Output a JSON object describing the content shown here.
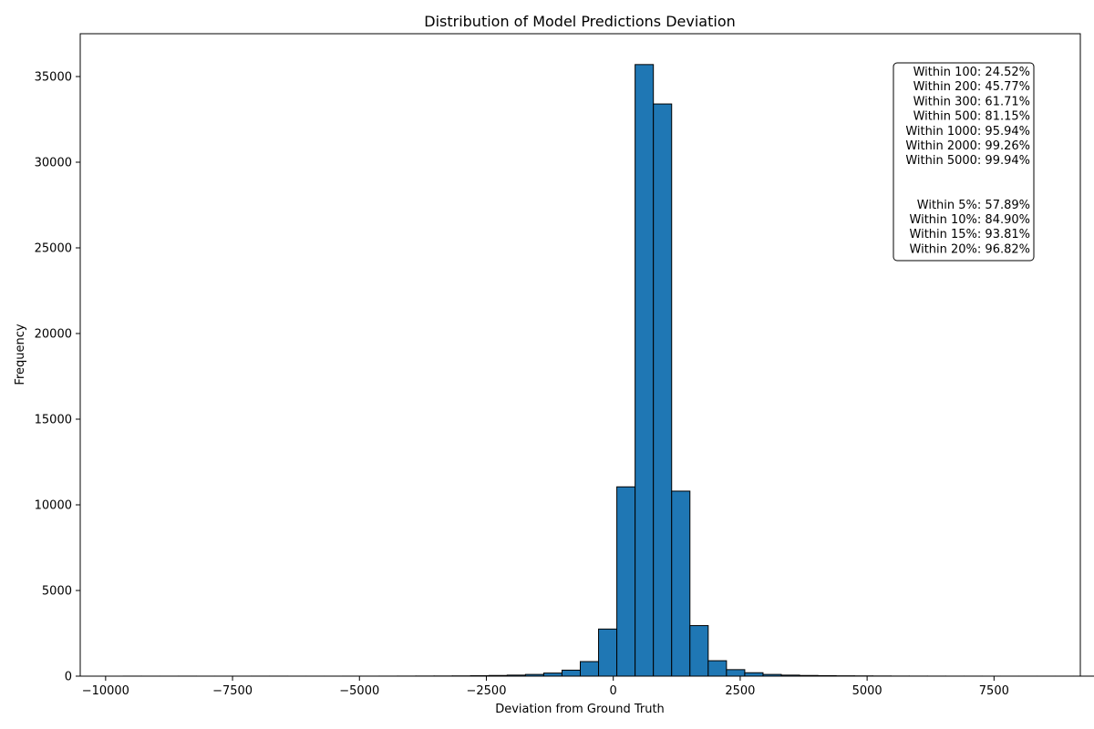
{
  "chart_data": {
    "type": "bar",
    "title": "Distribution of Model Predictions Deviation",
    "xlabel": "Deviation from Ground Truth",
    "ylabel": "Frequency",
    "xlim": [
      -10500,
      9200
    ],
    "ylim": [
      0,
      37500
    ],
    "x_ticks": [
      -10000,
      -7500,
      -5000,
      -2500,
      0,
      2500,
      5000,
      7500
    ],
    "x_tick_labels": [
      "−10000",
      "−7500",
      "−5000",
      "−2500",
      "0",
      "2500",
      "5000",
      "7500"
    ],
    "y_ticks": [
      0,
      5000,
      10000,
      15000,
      20000,
      25000,
      30000,
      35000
    ],
    "y_tick_labels": [
      "0",
      "5000",
      "10000",
      "15000",
      "20000",
      "25000",
      "30000",
      "35000"
    ],
    "bin_start": -9650,
    "bin_width": 360,
    "bin_counts": [
      2,
      1,
      1,
      2,
      1,
      1,
      1,
      2,
      2,
      1,
      1,
      1,
      2,
      2,
      3,
      5,
      8,
      10,
      15,
      25,
      40,
      60,
      100,
      180,
      350,
      850,
      2750,
      11050,
      35700,
      33400,
      10800,
      2950,
      900,
      380,
      200,
      100,
      60,
      40,
      30,
      20,
      15,
      10,
      6,
      4,
      3,
      2,
      2,
      1,
      1,
      1,
      1,
      1,
      1,
      1
    ],
    "bar_color": "#1f77b4",
    "edge_color": "#000000",
    "annotation_lines": [
      "Within 100: 24.52%",
      "Within 200: 45.77%",
      "Within 300: 61.71%",
      "Within 500: 81.15%",
      "Within 1000: 95.94%",
      "Within 2000: 99.26%",
      "Within 5000: 99.94%",
      "",
      "",
      "Within 5%: 57.89%",
      "Within 10%: 84.90%",
      "Within 15%: 93.81%",
      "Within 20%: 96.82%"
    ],
    "annotation_placement": "top-right",
    "grid": false
  }
}
